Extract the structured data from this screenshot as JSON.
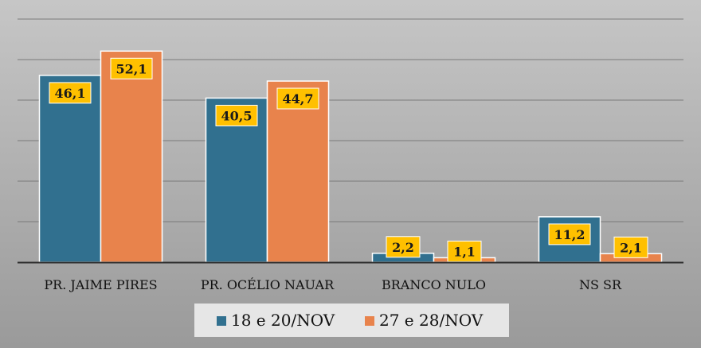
{
  "chart_data": {
    "type": "bar",
    "categories": [
      "PR. JAIME PIRES",
      "PR. OCÉLIO NAUAR",
      "BRANCO NULO",
      "NS SR"
    ],
    "series": [
      {
        "name": "18 e 20/NOV",
        "values": [
          46.1,
          40.5,
          2.2,
          11.2
        ],
        "labels": [
          "46,1",
          "40,5",
          "2,2",
          "11,2"
        ]
      },
      {
        "name": "27 e 28/NOV",
        "values": [
          52.1,
          44.7,
          1.1,
          2.1
        ],
        "labels": [
          "52,1",
          "44,7",
          "1,1",
          "2,1"
        ]
      }
    ],
    "ylim": [
      0,
      60
    ],
    "grid": true,
    "legend_position": "bottom"
  },
  "colors": {
    "series": [
      "#31708f",
      "#e8834c"
    ],
    "background_top": "#c6c6c6",
    "background_bottom": "#9a9a9a",
    "label_box": "#ffc000",
    "gridline": "#7a7a7a",
    "legend_box": "#e6e6e6"
  }
}
